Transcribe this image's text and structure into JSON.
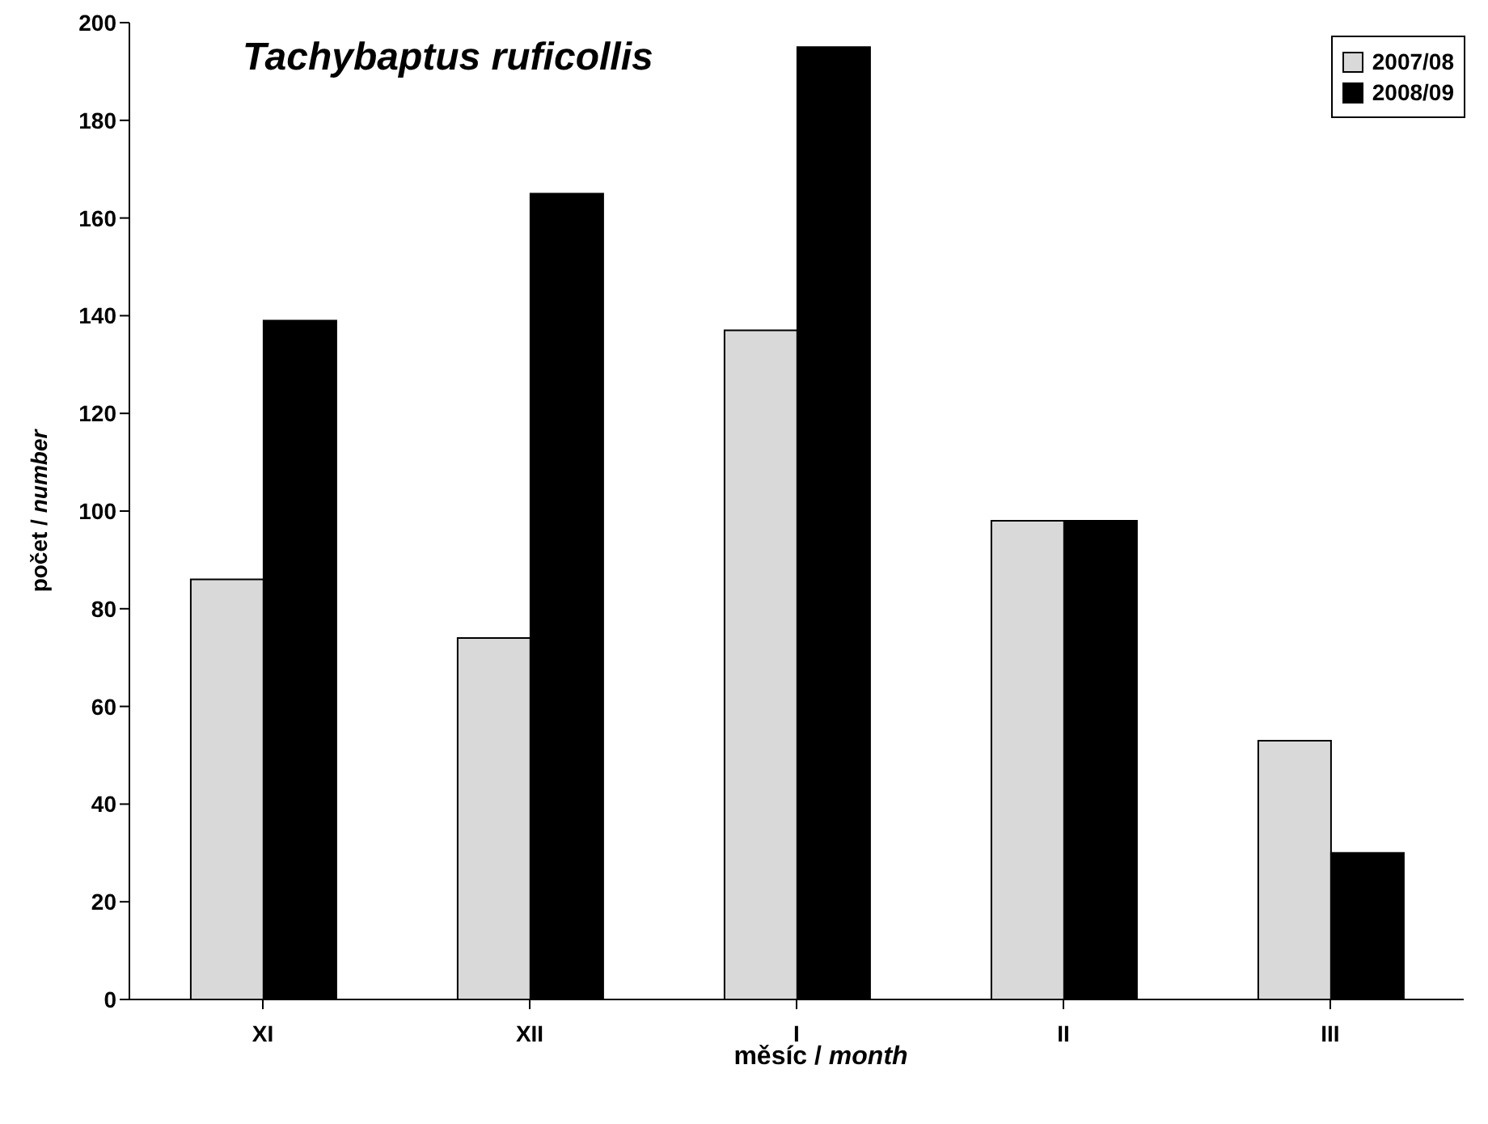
{
  "chart_data": {
    "type": "bar",
    "title": "Tachybaptus ruficollis",
    "xlabel": "měsíc / month",
    "ylabel": "počet / number",
    "categories": [
      "XI",
      "XII",
      "I",
      "II",
      "III"
    ],
    "series": [
      {
        "name": "2007/08",
        "color": "#d9d9d9",
        "values": [
          86,
          74,
          137,
          98,
          53
        ]
      },
      {
        "name": "2008/09",
        "color": "#000000",
        "values": [
          139,
          165,
          195,
          98,
          30
        ]
      }
    ],
    "ylim": [
      0,
      200
    ],
    "yticks": [
      0,
      20,
      40,
      60,
      80,
      100,
      120,
      140,
      160,
      180,
      200
    ],
    "grid": false,
    "legend": "top right"
  }
}
